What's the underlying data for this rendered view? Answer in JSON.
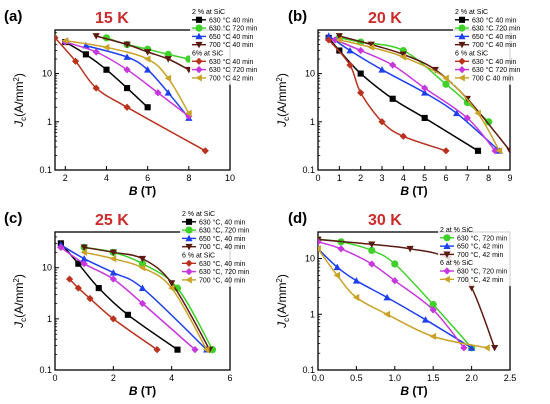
{
  "figure": {
    "xlabel": "B (T)",
    "ylabel": "Jc(A/mm²)",
    "ylabel_main": "J",
    "ylabel_sub": "c",
    "ylabel_rest": "(A/mm",
    "ylabel_sup": "2",
    "ylabel_close": ")",
    "xlabel_var": "B",
    "xlabel_unit": " (T)"
  },
  "colors": {
    "black": "#000000",
    "green": "#3fd12a",
    "blue": "#1d3ff0",
    "darkbrown": "#5a1a10",
    "red": "#b8321e",
    "violet": "#c637dd",
    "yellow": "#c9a227",
    "panel_title": "#cc2b2b"
  },
  "chart_data": [
    {
      "type": "line",
      "panel_label": "(a)",
      "temperature": "15 K",
      "x_ticks": [
        "2",
        "4",
        "6",
        "8",
        "10"
      ],
      "x_tick_values": [
        2,
        4,
        6,
        8,
        10
      ],
      "y_ticks": [
        "0.1",
        "1",
        "10"
      ],
      "y_tick_values": [
        0.1,
        1,
        10
      ],
      "y_scale": "log",
      "xlim": [
        1.5,
        10
      ],
      "ylim": [
        0.1,
        80
      ],
      "legend": [
        {
          "kind": "header",
          "text": "2 % at SiC"
        },
        {
          "kind": "series",
          "index": 0,
          "text": "630 °C 40 min"
        },
        {
          "kind": "series",
          "index": 1,
          "text": "630 °C 720 min"
        },
        {
          "kind": "series",
          "index": 2,
          "text": "650 °C 40 min"
        },
        {
          "kind": "series",
          "index": 3,
          "text": "700 °C 40 min"
        },
        {
          "kind": "header",
          "text": "6% at SiC"
        },
        {
          "kind": "series",
          "index": 4,
          "text": "630 °C 40 min"
        },
        {
          "kind": "series",
          "index": 5,
          "text": "630 °C 720 min"
        },
        {
          "kind": "series",
          "index": 6,
          "text": "700 °C 42 min"
        }
      ],
      "series": [
        {
          "name": "630 °C 40 min",
          "color": "black",
          "marker": "square",
          "x": [
            2.0,
            3.0,
            4.0,
            5.0,
            6.0
          ],
          "y": [
            45,
            25,
            12,
            5,
            2.0
          ]
        },
        {
          "name": "630 °C 720 min",
          "color": "green",
          "marker": "circle",
          "x": [
            4.0,
            5.0,
            6.0,
            7.0,
            8.0
          ],
          "y": [
            55,
            40,
            32,
            25,
            20
          ]
        },
        {
          "name": "650 °C 40 min",
          "color": "blue",
          "marker": "triangle-up",
          "x": [
            3.0,
            5.0,
            6.0,
            7.0,
            8.0
          ],
          "y": [
            38,
            22,
            12,
            4,
            1.2
          ]
        },
        {
          "name": "700 °C 40 min",
          "color": "darkbrown",
          "marker": "triangle-down",
          "x": [
            3.5,
            5.0,
            6.0,
            7.0,
            8.0
          ],
          "y": [
            60,
            40,
            28,
            20,
            12
          ]
        },
        {
          "name": "630 °C 40 min",
          "color": "red",
          "marker": "diamond",
          "x": [
            1.5,
            2.5,
            3.5,
            5.0,
            8.8
          ],
          "y": [
            55,
            18,
            5,
            2,
            0.25
          ]
        },
        {
          "name": "630 °C 720 min",
          "color": "violet",
          "marker": "diamond",
          "x": [
            2.0,
            3.5,
            5.0,
            6.5,
            8.0
          ],
          "y": [
            45,
            28,
            12,
            4,
            1.3
          ]
        },
        {
          "name": "700 °C 42 min",
          "color": "yellow",
          "marker": "triangle-left",
          "x": [
            2.0,
            4.0,
            6.0,
            7.0,
            8.0
          ],
          "y": [
            48,
            35,
            20,
            8,
            1.5
          ]
        }
      ]
    },
    {
      "type": "line",
      "panel_label": "(b)",
      "temperature": "20 K",
      "x_ticks": [
        "0",
        "1",
        "2",
        "3",
        "4",
        "5",
        "6",
        "7",
        "8",
        "9"
      ],
      "x_tick_values": [
        0,
        1,
        2,
        3,
        4,
        5,
        6,
        7,
        8,
        9
      ],
      "y_ticks": [
        "0.1",
        "1",
        "10"
      ],
      "y_tick_values": [
        0.1,
        1,
        10
      ],
      "y_scale": "log",
      "xlim": [
        0,
        9
      ],
      "ylim": [
        0.1,
        80
      ],
      "legend": [
        {
          "kind": "header",
          "text": "2 % at SiC"
        },
        {
          "kind": "series",
          "index": 0,
          "text": "630 °C 40 min"
        },
        {
          "kind": "series",
          "index": 1,
          "text": "630 °C 720 min"
        },
        {
          "kind": "series",
          "index": 2,
          "text": "650 °C 40 min"
        },
        {
          "kind": "series",
          "index": 3,
          "text": "700 °C 40 min"
        },
        {
          "kind": "header",
          "text": "6 % at SiC"
        },
        {
          "kind": "series",
          "index": 4,
          "text": "630 °C 40 min"
        },
        {
          "kind": "series",
          "index": 5,
          "text": "630 °C 720 min"
        },
        {
          "kind": "series",
          "index": 6,
          "text": "700 C 40 min"
        }
      ],
      "series": [
        {
          "name": "630 °C 40 min",
          "color": "black",
          "marker": "square",
          "x": [
            0.5,
            1.0,
            2.0,
            3.5,
            5.0,
            7.5
          ],
          "y": [
            55,
            30,
            10,
            3,
            1.2,
            0.25
          ]
        },
        {
          "name": "630 °C 720 min",
          "color": "green",
          "marker": "circle",
          "x": [
            1.0,
            2.0,
            4.0,
            6.0,
            7.0,
            8.0
          ],
          "y": [
            55,
            45,
            30,
            6,
            2.5,
            1.0
          ]
        },
        {
          "name": "650 °C 40 min",
          "color": "blue",
          "marker": "triangle-up",
          "x": [
            0.5,
            1.5,
            3.0,
            5.0,
            6.5,
            8.5
          ],
          "y": [
            60,
            30,
            12,
            4,
            1.5,
            0.25
          ]
        },
        {
          "name": "700 °C 40 min",
          "color": "darkbrown",
          "marker": "triangle-down",
          "x": [
            1.0,
            2.5,
            4.0,
            5.5,
            7.0,
            9.0
          ],
          "y": [
            60,
            40,
            25,
            12,
            3,
            0.25
          ]
        },
        {
          "name": "630 °C 40 min",
          "color": "red",
          "marker": "diamond",
          "x": [
            0.5,
            1.5,
            2.0,
            3.0,
            4.0,
            6.0
          ],
          "y": [
            50,
            15,
            4,
            1.0,
            0.5,
            0.25
          ]
        },
        {
          "name": "630 °C 720 min",
          "color": "violet",
          "marker": "diamond",
          "x": [
            0.8,
            2.0,
            3.5,
            5.0,
            7.0,
            8.3
          ],
          "y": [
            50,
            30,
            15,
            5,
            1.2,
            0.25
          ]
        },
        {
          "name": "700 C 40 min",
          "color": "yellow",
          "marker": "triangle-left",
          "x": [
            1.0,
            2.5,
            4.0,
            6.0,
            7.5,
            8.5
          ],
          "y": [
            50,
            35,
            22,
            8,
            1.5,
            0.25
          ]
        }
      ]
    },
    {
      "type": "line",
      "panel_label": "(c)",
      "temperature": "25 K",
      "x_ticks": [
        "0",
        "2",
        "4",
        "6"
      ],
      "x_tick_values": [
        0,
        2,
        4,
        6
      ],
      "y_ticks": [
        "0.1",
        "1",
        "10"
      ],
      "y_tick_values": [
        0.1,
        1,
        10
      ],
      "y_scale": "log",
      "xlim": [
        0,
        6
      ],
      "ylim": [
        0.1,
        50
      ],
      "legend": [
        {
          "kind": "header",
          "text": "2 % at SiC"
        },
        {
          "kind": "series",
          "index": 0,
          "text": "630 °C, 40 min"
        },
        {
          "kind": "series",
          "index": 1,
          "text": "630 °C, 720 min"
        },
        {
          "kind": "series",
          "index": 2,
          "text": "650 °C, 40 min"
        },
        {
          "kind": "series",
          "index": 3,
          "text": "700 °C, 40 min"
        },
        {
          "kind": "header",
          "text": "6 % at SiC"
        },
        {
          "kind": "series",
          "index": 4,
          "text": "630 °C, 40 min"
        },
        {
          "kind": "series",
          "index": 5,
          "text": "630 °C, 720 min"
        },
        {
          "kind": "series",
          "index": 6,
          "text": "700 °C, 40 min"
        }
      ],
      "series": [
        {
          "name": "630 °C, 40 min",
          "color": "black",
          "marker": "square",
          "x": [
            0.2,
            0.8,
            1.5,
            2.5,
            4.2
          ],
          "y": [
            30,
            12,
            4,
            1.2,
            0.25
          ]
        },
        {
          "name": "630 °C, 720 min",
          "color": "green",
          "marker": "circle",
          "x": [
            1.0,
            2.0,
            3.0,
            4.2,
            5.4
          ],
          "y": [
            25,
            20,
            12,
            4,
            0.25
          ]
        },
        {
          "name": "650 °C, 40 min",
          "color": "blue",
          "marker": "triangle-up",
          "x": [
            0.2,
            1.0,
            2.0,
            3.0,
            5.2
          ],
          "y": [
            28,
            15,
            8,
            4,
            0.25
          ]
        },
        {
          "name": "700 °C, 40 min",
          "color": "darkbrown",
          "marker": "triangle-down",
          "x": [
            1.0,
            2.0,
            3.0,
            4.0,
            5.3
          ],
          "y": [
            25,
            20,
            15,
            5,
            0.25
          ]
        },
        {
          "name": "630 °C, 40 min",
          "color": "red",
          "marker": "diamond",
          "x": [
            0.5,
            0.8,
            1.2,
            2.0,
            3.5
          ],
          "y": [
            6,
            4,
            2.5,
            1.0,
            0.25
          ]
        },
        {
          "name": "630 °C, 720 min",
          "color": "violet",
          "marker": "diamond",
          "x": [
            0.2,
            1.0,
            2.0,
            3.0,
            4.8
          ],
          "y": [
            25,
            12,
            6,
            2,
            0.25
          ]
        },
        {
          "name": "700 °C, 40 min",
          "color": "yellow",
          "marker": "triangle-left",
          "x": [
            1.0,
            2.0,
            3.0,
            4.0,
            5.2
          ],
          "y": [
            20,
            15,
            10,
            4,
            0.25
          ]
        }
      ]
    },
    {
      "type": "line",
      "panel_label": "(d)",
      "temperature": "30 K",
      "x_ticks": [
        "0.0",
        "0.5",
        "1.0",
        "1.5",
        "2.0",
        "2.5"
      ],
      "x_tick_values": [
        0,
        0.5,
        1.0,
        1.5,
        2.0,
        2.5
      ],
      "y_ticks": [
        "0.1",
        "1",
        "10"
      ],
      "y_tick_values": [
        0.1,
        1,
        10
      ],
      "y_scale": "log",
      "xlim": [
        0,
        2.5
      ],
      "ylim": [
        0.1,
        30
      ],
      "legend": [
        {
          "kind": "header",
          "text": "2 at % SiC"
        },
        {
          "kind": "series",
          "index": 0,
          "text": "630 °C, 720 min"
        },
        {
          "kind": "series",
          "index": 1,
          "text": "650 °C, 42 min"
        },
        {
          "kind": "series",
          "index": 2,
          "text": "700 °C, 42 min"
        },
        {
          "kind": "header",
          "text": "6 at % SiC"
        },
        {
          "kind": "series",
          "index": 3,
          "text": "630 °C, 720 min"
        },
        {
          "kind": "series",
          "index": 4,
          "text": "700 °C, 42 min"
        }
      ],
      "series": [
        {
          "name": "630 °C, 720 min",
          "color": "green",
          "marker": "circle",
          "x": [
            0.0,
            0.3,
            0.7,
            1.0,
            1.5,
            2.0
          ],
          "y": [
            22,
            20,
            14,
            8,
            1.5,
            0.25
          ]
        },
        {
          "name": "650 °C, 42 min",
          "color": "blue",
          "marker": "triangle-up",
          "x": [
            0.0,
            0.25,
            0.5,
            0.9,
            1.4,
            2.0
          ],
          "y": [
            15,
            7,
            4,
            2,
            0.8,
            0.25
          ]
        },
        {
          "name": "700 °C, 42 min",
          "color": "darkbrown",
          "marker": "triangle-down",
          "x": [
            0.0,
            0.7,
            1.2,
            1.7,
            2.0,
            2.3
          ],
          "y": [
            22,
            18,
            15,
            10,
            3,
            0.25
          ]
        },
        {
          "name": "630 °C, 720 min",
          "color": "violet",
          "marker": "diamond",
          "x": [
            0.0,
            0.3,
            0.7,
            1.0,
            1.5,
            1.9
          ],
          "y": [
            20,
            15,
            8,
            4,
            1.2,
            0.25
          ]
        },
        {
          "name": "700 °C, 42 min",
          "color": "yellow",
          "marker": "triangle-left",
          "x": [
            0.0,
            0.25,
            0.5,
            0.9,
            1.5,
            2.2
          ],
          "y": [
            15,
            5,
            2,
            1,
            0.4,
            0.25
          ]
        }
      ]
    }
  ]
}
